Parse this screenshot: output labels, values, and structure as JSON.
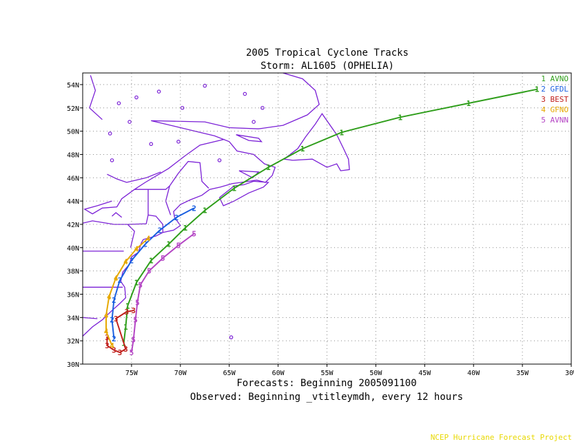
{
  "chart_data": {
    "type": "line",
    "title": "2005 Tropical Cyclone Tracks",
    "subtitle": "Storm: AL1605 (OPHELIA)",
    "footer_lines": [
      "Forecasts: Beginning 2005091100",
      "Observed: Beginning _vtitleymdh, every 12 hours"
    ],
    "credit": "NCEP Hurricane Forecast Project",
    "xlabel": "",
    "ylabel": "",
    "xlim": [
      -80,
      -30
    ],
    "ylim": [
      30,
      55
    ],
    "x_ticks": [
      -75,
      -70,
      -65,
      -60,
      -55,
      -50,
      -45,
      -40,
      -35,
      -30
    ],
    "x_tick_labels": [
      "75W",
      "70W",
      "65W",
      "60W",
      "55W",
      "50W",
      "45W",
      "40W",
      "35W",
      "30W"
    ],
    "y_ticks": [
      30,
      32,
      34,
      36,
      38,
      40,
      42,
      44,
      46,
      48,
      50,
      52,
      54
    ],
    "y_tick_labels": [
      "30N",
      "32N",
      "34N",
      "36N",
      "38N",
      "40N",
      "42N",
      "44N",
      "46N",
      "48N",
      "50N",
      "52N",
      "54N"
    ],
    "grid": true,
    "legend_position": "top-right",
    "series": [
      {
        "name": "AVNO",
        "marker": "1",
        "color": "#2f9e1b",
        "points": [
          [
            -75.8,
            31.8
          ],
          [
            -75.6,
            33.2
          ],
          [
            -75.4,
            35.0
          ],
          [
            -74.5,
            37.0
          ],
          [
            -73.0,
            38.9
          ],
          [
            -71.2,
            40.3
          ],
          [
            -69.5,
            41.7
          ],
          [
            -67.5,
            43.2
          ],
          [
            -64.5,
            45.1
          ],
          [
            -61.0,
            46.9
          ],
          [
            -57.5,
            48.5
          ],
          [
            -53.5,
            49.9
          ],
          [
            -47.5,
            51.2
          ],
          [
            -40.5,
            52.4
          ],
          [
            -33.5,
            53.6
          ]
        ]
      },
      {
        "name": "GFDL",
        "marker": "2",
        "color": "#1a5fe0",
        "points": [
          [
            -76.8,
            32.2
          ],
          [
            -77.0,
            33.8
          ],
          [
            -76.8,
            35.5
          ],
          [
            -76.2,
            37.2
          ],
          [
            -75.0,
            38.9
          ],
          [
            -73.6,
            40.3
          ],
          [
            -72.1,
            41.5
          ],
          [
            -70.4,
            42.6
          ],
          [
            -68.6,
            43.4
          ]
        ]
      },
      {
        "name": "BEST",
        "marker": "3",
        "color": "#c0201c",
        "points": [
          [
            -77.5,
            32.3
          ],
          [
            -77.5,
            31.6
          ],
          [
            -76.8,
            31.2
          ],
          [
            -76.2,
            31.0
          ],
          [
            -75.6,
            31.3
          ],
          [
            -76.6,
            33.9
          ],
          [
            -75.5,
            34.5
          ],
          [
            -74.8,
            34.6
          ]
        ]
      },
      {
        "name": "GFNO",
        "marker": "4",
        "color": "#e6a800",
        "points": [
          [
            -77.0,
            31.6
          ],
          [
            -77.6,
            32.8
          ],
          [
            -77.6,
            34.2
          ],
          [
            -77.3,
            35.8
          ],
          [
            -76.6,
            37.4
          ],
          [
            -75.6,
            38.8
          ],
          [
            -74.5,
            39.9
          ],
          [
            -73.3,
            40.8
          ]
        ]
      },
      {
        "name": "AVNN",
        "marker": "5",
        "color": "#b445c4",
        "points": [
          [
            -75.0,
            31.0
          ],
          [
            -74.8,
            32.1
          ],
          [
            -74.6,
            33.8
          ],
          [
            -74.4,
            35.3
          ],
          [
            -74.1,
            36.8
          ],
          [
            -73.2,
            38.0
          ],
          [
            -71.8,
            39.1
          ],
          [
            -70.2,
            40.2
          ],
          [
            -68.6,
            41.2
          ]
        ]
      }
    ]
  }
}
